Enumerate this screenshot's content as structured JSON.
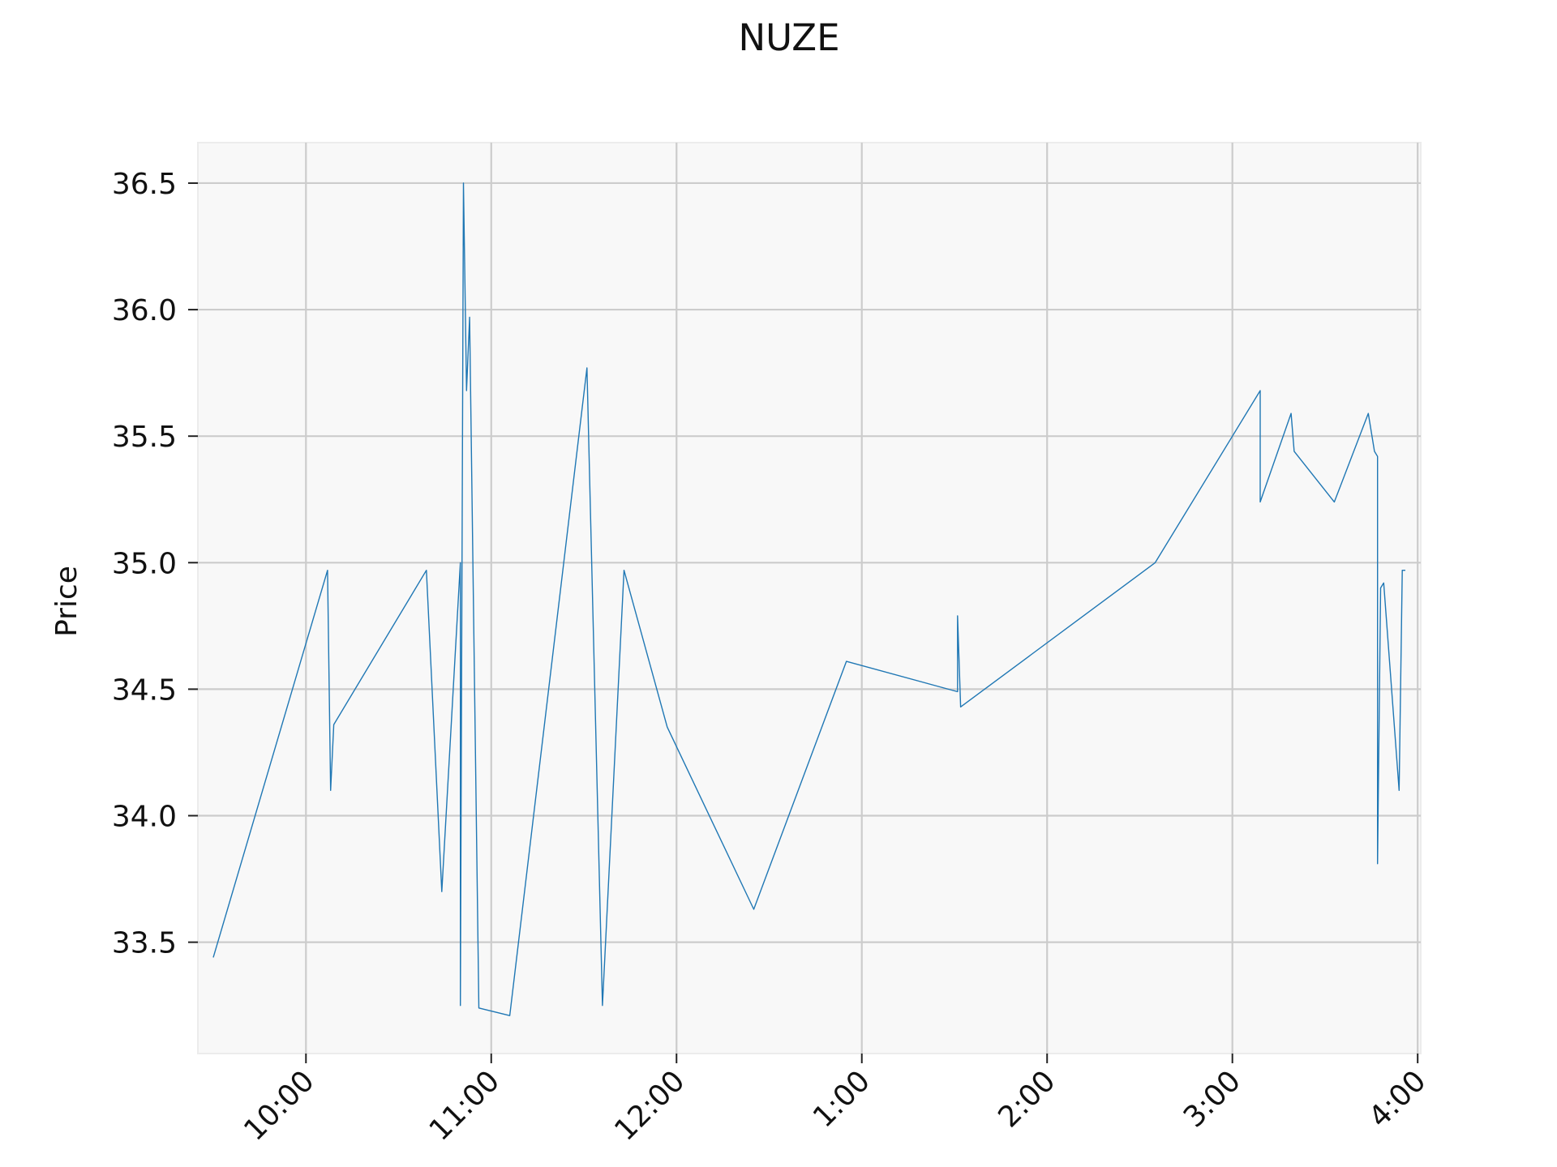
{
  "chart_data": {
    "type": "line",
    "title": "NUZE",
    "xlabel": "",
    "ylabel": "Price",
    "x_tick_labels": [
      "10:00",
      "11:00",
      "12:00",
      "1:00",
      "2:00",
      "3:00",
      "4:00"
    ],
    "x_tick_hours": [
      10,
      11,
      12,
      13,
      14,
      15,
      16
    ],
    "y_ticks": [
      33.5,
      34.0,
      34.5,
      35.0,
      35.5,
      36.0,
      36.5
    ],
    "y_tick_labels": [
      "33.5",
      "34.0",
      "34.5",
      "35.0",
      "35.5",
      "36.0",
      "36.5"
    ],
    "xlim": [
      "9:25",
      "16:01"
    ],
    "ylim": [
      33.06,
      36.66
    ],
    "grid": true,
    "colors": {
      "line": "#1f77b4",
      "plot_background": "#f8f8f8",
      "grid": "#cccccc"
    },
    "series": [
      {
        "x": [
          "9:30",
          "10:07",
          "10:08",
          "10:09",
          "10:39",
          "10:44",
          "10:50",
          "10:50",
          "10:51",
          "10:52",
          "10:53",
          "10:56",
          "11:06",
          "11:31",
          "11:36",
          "11:43",
          "11:57",
          "12:25",
          "12:55",
          "13:31",
          "13:31",
          "13:32",
          "14:35",
          "15:09",
          "15:09",
          "15:19",
          "15:20",
          "15:33",
          "15:44",
          "15:46",
          "15:47",
          "15:47",
          "15:48",
          "15:49",
          "15:54",
          "15:55",
          "15:56"
        ],
        "y": [
          33.44,
          34.97,
          34.1,
          34.36,
          34.97,
          33.7,
          35.0,
          33.25,
          36.5,
          35.68,
          35.97,
          33.24,
          33.21,
          35.77,
          33.25,
          34.97,
          34.35,
          33.63,
          34.61,
          34.49,
          34.79,
          34.43,
          35.0,
          35.68,
          35.24,
          35.59,
          35.44,
          35.24,
          35.59,
          35.44,
          35.42,
          33.81,
          34.9,
          34.92,
          34.1,
          34.97,
          34.97
        ]
      }
    ]
  }
}
